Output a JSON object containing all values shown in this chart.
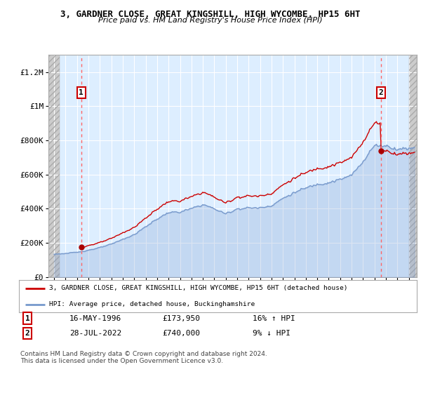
{
  "title_line1": "3, GARDNER CLOSE, GREAT KINGSHILL, HIGH WYCOMBE, HP15 6HT",
  "title_line2": "Price paid vs. HM Land Registry's House Price Index (HPI)",
  "ylim": [
    0,
    1300000
  ],
  "xlim_start": 1993.5,
  "xlim_end": 2025.7,
  "ytick_labels": [
    "£0",
    "£200K",
    "£400K",
    "£600K",
    "£800K",
    "£1M",
    "£1.2M"
  ],
  "ytick_values": [
    0,
    200000,
    400000,
    600000,
    800000,
    1000000,
    1200000
  ],
  "background_color": "#ffffff",
  "plot_bg_color": "#ddeeff",
  "grid_color": "#ffffff",
  "red_line_color": "#cc0000",
  "blue_line_color": "#7799cc",
  "dashed_line_color": "#ff6666",
  "marker_color": "#aa0000",
  "sale1_x": 1996.37,
  "sale1_y": 173950,
  "sale1_label": "1",
  "sale2_x": 2022.57,
  "sale2_y": 740000,
  "sale2_label": "2",
  "legend_line1": "3, GARDNER CLOSE, GREAT KINGSHILL, HIGH WYCOMBE, HP15 6HT (detached house)",
  "legend_line2": "HPI: Average price, detached house, Buckinghamshire",
  "table_row1": [
    "1",
    "16-MAY-1996",
    "£173,950",
    "16% ↑ HPI"
  ],
  "table_row2": [
    "2",
    "28-JUL-2022",
    "£740,000",
    "9% ↓ HPI"
  ],
  "footer": "Contains HM Land Registry data © Crown copyright and database right 2024.\nThis data is licensed under the Open Government Licence v3.0."
}
